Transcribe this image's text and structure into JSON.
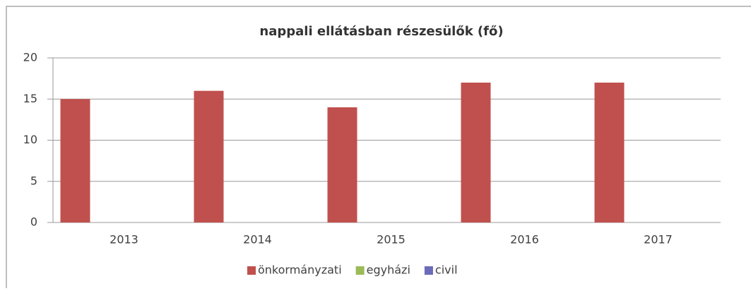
{
  "chart_data": {
    "type": "bar",
    "title": "nappali ellátásban részesülők (fő)",
    "categories": [
      "2013",
      "2014",
      "2015",
      "2016",
      "2017"
    ],
    "series": [
      {
        "name": "önkormányzati",
        "color": "#c0504d",
        "values": [
          15,
          16,
          14,
          17,
          17
        ]
      },
      {
        "name": "egyházi",
        "color": "#9bbb59",
        "values": [
          0,
          0,
          0,
          0,
          0
        ]
      },
      {
        "name": "civil",
        "color": "#6b6bb8",
        "values": [
          0,
          0,
          0,
          0,
          0
        ]
      }
    ],
    "ylim": [
      0,
      20
    ],
    "yticks": [
      0,
      5,
      10,
      15,
      20
    ],
    "grid": true,
    "legend": "bottom"
  }
}
